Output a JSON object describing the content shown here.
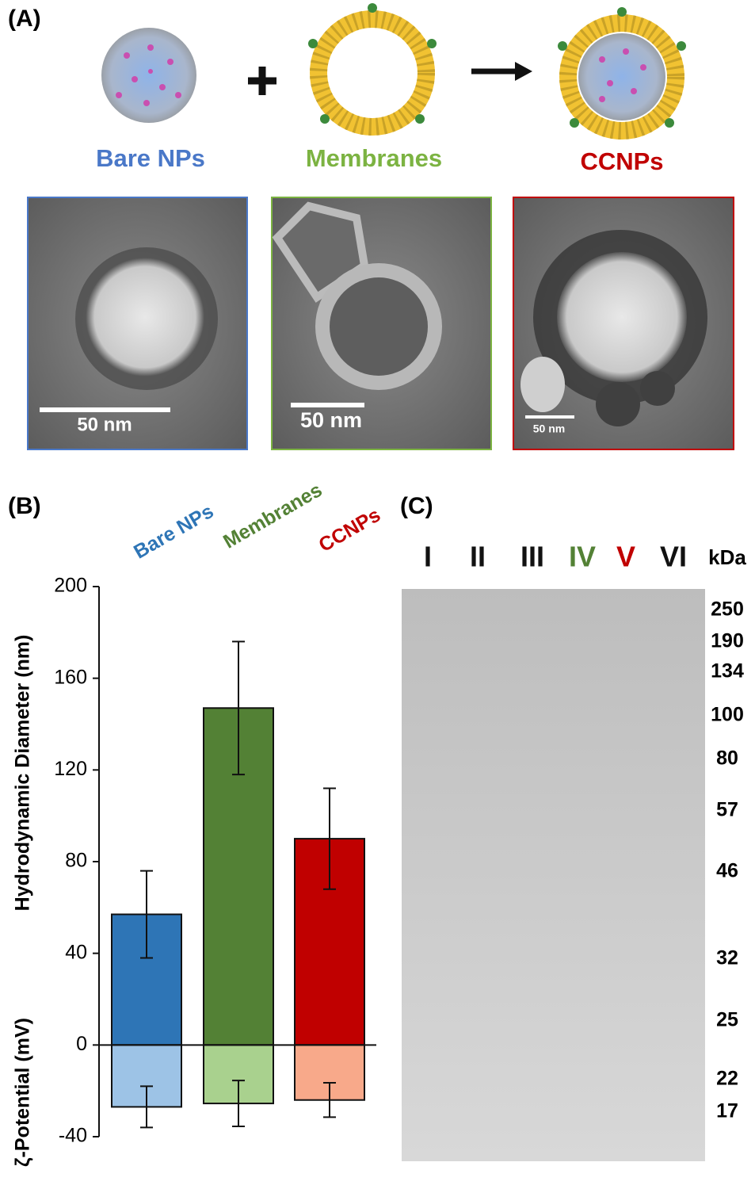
{
  "panel_a": {
    "label": "(A)",
    "items": [
      {
        "name": "Bare NPs",
        "color": "#4a78c8",
        "scale_bar": "50 nm"
      },
      {
        "name": "Membranes",
        "color": "#7cb342",
        "scale_bar": "50 nm"
      },
      {
        "name": "CCNPs",
        "color": "#c00000",
        "scale_bar": "50 nm"
      }
    ]
  },
  "chart_data": {
    "type": "bar",
    "label": "(B)",
    "categories": [
      "Bare NPs",
      "Membranes",
      "CCNPs"
    ],
    "category_colors": [
      "#2e75b6",
      "#538135",
      "#c00000"
    ],
    "y_labels": [
      "Hydrodynamic Diameter (nm)",
      "ζ-Potential (mV)"
    ],
    "series": [
      {
        "colors": [
          "#2e75b6",
          "#538135",
          "#c00000"
        ],
        "values": [
          57,
          147,
          90
        ],
        "errors": [
          19,
          29,
          22
        ]
      },
      {
        "colors": [
          "#9dc3e6",
          "#a9d18e",
          "#f8a98a"
        ],
        "values": [
          -27,
          -25.5,
          -24
        ],
        "errors": [
          9,
          10,
          7.5
        ]
      }
    ],
    "ylim": [
      -40,
      200
    ],
    "yticks": [
      -40,
      0,
      40,
      80,
      120,
      160,
      200
    ]
  },
  "panel_c": {
    "label": "(C)",
    "lanes": [
      {
        "label": "I",
        "color": "#111111"
      },
      {
        "label": "II",
        "color": "#111111"
      },
      {
        "label": "III",
        "color": "#111111"
      },
      {
        "label": "IV",
        "color": "#538135"
      },
      {
        "label": "V",
        "color": "#c00000"
      },
      {
        "label": "VI",
        "color": "#111111"
      }
    ],
    "unit": "kDa",
    "markers": [
      250,
      190,
      134,
      100,
      80,
      57,
      46,
      32,
      25,
      22,
      17
    ]
  }
}
